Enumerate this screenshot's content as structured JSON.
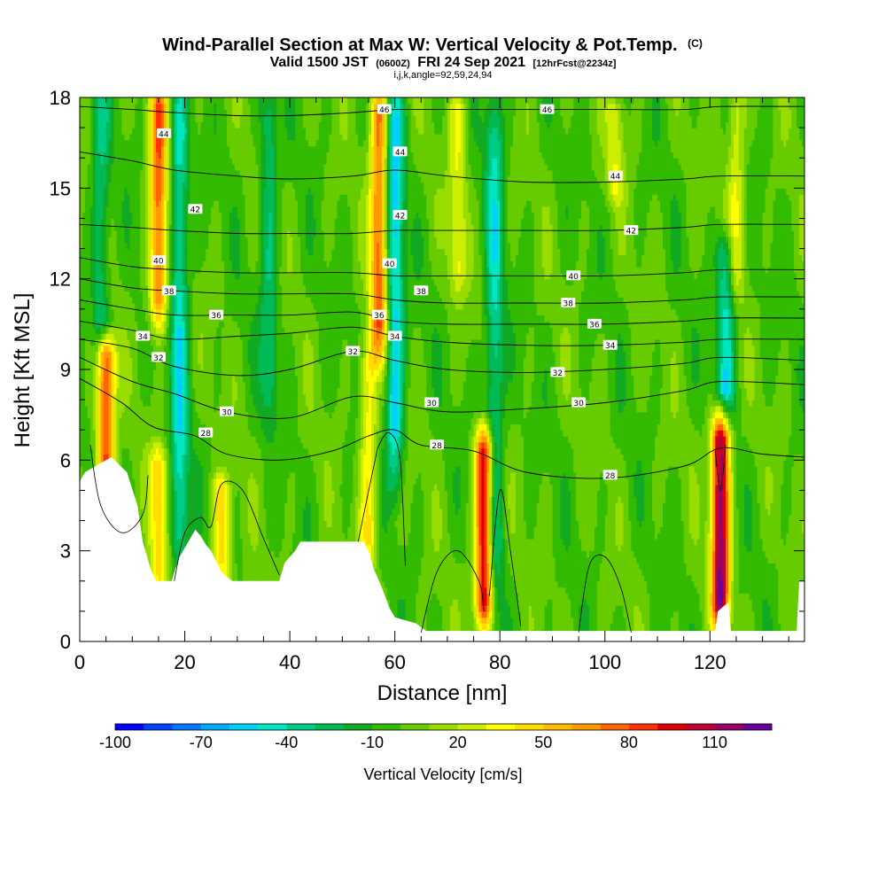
{
  "figure": {
    "title_main": "Wind-Parallel Section at Max W: Vertical Velocity & Pot.Temp.",
    "title_mark": "(C)",
    "subtitle_prefix": "Valid 1500 JST",
    "subtitle_z": "(0600Z)",
    "subtitle_date": "FRI 24 Sep 2021",
    "subtitle_fcst": "[12hrFcst@2234z]",
    "subtitle_ijk": "i,j,k,angle=92,59,24,94"
  },
  "chart_data": {
    "type": "heatmap",
    "xlabel": "Distance [nm]",
    "ylabel": "Height [Kft MSL]",
    "xlim": [
      0,
      138
    ],
    "ylim": [
      0,
      18
    ],
    "x_ticks": [
      0,
      20,
      40,
      60,
      80,
      100,
      120
    ],
    "y_ticks": [
      0,
      3,
      6,
      9,
      12,
      15,
      18
    ],
    "colorbar": {
      "label": "Vertical Velocity [cm/s]",
      "tick_labels": [
        "-100",
        "-70",
        "-40",
        "-10",
        "20",
        "50",
        "80",
        "110"
      ],
      "tick_values": [
        -100,
        -70,
        -40,
        -10,
        20,
        50,
        80,
        110
      ],
      "range": [
        -100,
        120
      ],
      "step": 10,
      "colors": [
        "#0000ff",
        "#0044ff",
        "#0077ff",
        "#00aaff",
        "#00d0ff",
        "#00e6c0",
        "#00cc88",
        "#00bb55",
        "#11aa22",
        "#33bb00",
        "#66cc00",
        "#99dd00",
        "#ccee00",
        "#ffff00",
        "#ffdd00",
        "#ffbb00",
        "#ff9900",
        "#ff6600",
        "#ff3300",
        "#dd0000",
        "#bb0033",
        "#990066",
        "#660099"
      ]
    },
    "background_value": 0,
    "updraft_columns": [
      {
        "x": 5,
        "y_bottom": 5.7,
        "y_top": 9.6,
        "peak": 85
      },
      {
        "x": 15,
        "y_bottom": 11.0,
        "y_top": 18.0,
        "peak": 75
      },
      {
        "x": 15,
        "y_bottom": 2.2,
        "y_top": 6.0,
        "peak": 45
      },
      {
        "x": 27,
        "y_bottom": 2.1,
        "y_top": 5.0,
        "peak": 45
      },
      {
        "x": 55,
        "y_bottom": 3.0,
        "y_top": 9.5,
        "peak": 40
      },
      {
        "x": 57,
        "y_bottom": 10.0,
        "y_top": 18.0,
        "peak": 75
      },
      {
        "x": 77,
        "y_bottom": 1.0,
        "y_top": 6.5,
        "peak": 105
      },
      {
        "x": 72,
        "y_bottom": 12.0,
        "y_top": 18.0,
        "peak": 30
      },
      {
        "x": 102,
        "y_bottom": 15.0,
        "y_top": 17.5,
        "peak": 25
      },
      {
        "x": 122,
        "y_bottom": 1.0,
        "y_top": 7.0,
        "peak": 118
      },
      {
        "x": 125,
        "y_bottom": 12.0,
        "y_top": 18.0,
        "peak": 30
      }
    ],
    "downdraft_columns": [
      {
        "x": 19,
        "y_bottom": 2.5,
        "y_top": 18.0,
        "peak": -45
      },
      {
        "x": 60,
        "y_bottom": 6.0,
        "y_top": 18.0,
        "peak": -55
      },
      {
        "x": 79,
        "y_bottom": 2.0,
        "y_top": 18.0,
        "peak": -40
      },
      {
        "x": 123,
        "y_bottom": 8.0,
        "y_top": 13.0,
        "peak": -45
      },
      {
        "x": 36,
        "y_bottom": 8.0,
        "y_top": 18.0,
        "peak": -30
      },
      {
        "x": 4,
        "y_bottom": 10.0,
        "y_top": 18.0,
        "peak": -30
      }
    ],
    "terrain_heights": [
      {
        "x": 0,
        "h": 5.3
      },
      {
        "x": 1,
        "h": 5.6
      },
      {
        "x": 6,
        "h": 6.1
      },
      {
        "x": 9,
        "h": 5.6
      },
      {
        "x": 11,
        "h": 4.5
      },
      {
        "x": 12,
        "h": 3.3
      },
      {
        "x": 13.5,
        "h": 2.4
      },
      {
        "x": 14.5,
        "h": 2.0
      },
      {
        "x": 17.5,
        "h": 2.0
      },
      {
        "x": 18,
        "h": 2.3
      },
      {
        "x": 19,
        "h": 2.8
      },
      {
        "x": 20,
        "h": 3.1
      },
      {
        "x": 21,
        "h": 3.4
      },
      {
        "x": 22,
        "h": 3.7
      },
      {
        "x": 23,
        "h": 3.5
      },
      {
        "x": 24,
        "h": 3.2
      },
      {
        "x": 25,
        "h": 3.0
      },
      {
        "x": 27,
        "h": 2.3
      },
      {
        "x": 29,
        "h": 2.0
      },
      {
        "x": 38,
        "h": 2.0
      },
      {
        "x": 39,
        "h": 2.6
      },
      {
        "x": 41,
        "h": 3.0
      },
      {
        "x": 42,
        "h": 3.3
      },
      {
        "x": 54,
        "h": 3.3
      },
      {
        "x": 55,
        "h": 3.0
      },
      {
        "x": 56,
        "h": 2.4
      },
      {
        "x": 57.5,
        "h": 1.8
      },
      {
        "x": 59,
        "h": 1.1
      },
      {
        "x": 60,
        "h": 0.8
      },
      {
        "x": 64,
        "h": 0.6
      },
      {
        "x": 66,
        "h": 0.35
      },
      {
        "x": 70,
        "h": 0.35
      },
      {
        "x": 71,
        "h": 0.35
      },
      {
        "x": 121,
        "h": 0.35
      },
      {
        "x": 121.5,
        "h": 1.0
      },
      {
        "x": 123.5,
        "h": 1.3
      },
      {
        "x": 124,
        "h": 0.35
      },
      {
        "x": 136.5,
        "h": 0.35
      },
      {
        "x": 137,
        "h": 2.0
      },
      {
        "x": 138,
        "h": 2.0
      }
    ],
    "theta_contours": [
      {
        "level": 28,
        "label": "28",
        "points": [
          [
            0,
            8.7
          ],
          [
            8,
            7.9
          ],
          [
            14,
            7.1
          ],
          [
            22,
            6.8
          ],
          [
            28,
            6.2
          ],
          [
            38,
            6.0
          ],
          [
            48,
            6.3
          ],
          [
            55,
            6.8
          ],
          [
            60,
            7.0
          ],
          [
            65,
            6.5
          ],
          [
            75,
            6.3
          ],
          [
            85,
            5.6
          ],
          [
            100,
            5.4
          ],
          [
            115,
            5.8
          ],
          [
            122,
            6.4
          ],
          [
            130,
            6.2
          ],
          [
            138,
            6.1
          ]
        ],
        "label_at": [
          [
            24,
            6.9
          ],
          [
            68,
            6.5
          ],
          [
            101,
            5.5
          ]
        ]
      },
      {
        "level": 30,
        "label": "30",
        "points": [
          [
            0,
            9.4
          ],
          [
            10,
            8.6
          ],
          [
            18,
            8.2
          ],
          [
            28,
            7.6
          ],
          [
            40,
            7.4
          ],
          [
            52,
            8.1
          ],
          [
            60,
            7.9
          ],
          [
            70,
            7.6
          ],
          [
            85,
            7.7
          ],
          [
            100,
            7.9
          ],
          [
            115,
            8.3
          ],
          [
            122,
            8.6
          ],
          [
            138,
            8.5
          ]
        ],
        "label_at": [
          [
            28,
            7.6
          ],
          [
            67,
            7.9
          ],
          [
            95,
            7.9
          ]
        ]
      },
      {
        "level": 32,
        "label": "32",
        "points": [
          [
            0,
            10.0
          ],
          [
            10,
            9.7
          ],
          [
            18,
            9.1
          ],
          [
            30,
            8.8
          ],
          [
            40,
            9.0
          ],
          [
            52,
            9.6
          ],
          [
            60,
            9.3
          ],
          [
            70,
            9.0
          ],
          [
            85,
            8.9
          ],
          [
            100,
            9.0
          ],
          [
            115,
            9.2
          ],
          [
            122,
            9.4
          ],
          [
            138,
            9.3
          ]
        ],
        "label_at": [
          [
            15,
            9.4
          ],
          [
            52,
            9.6
          ],
          [
            91,
            8.9
          ]
        ]
      },
      {
        "level": 34,
        "label": "34",
        "points": [
          [
            0,
            10.6
          ],
          [
            10,
            10.3
          ],
          [
            18,
            10.0
          ],
          [
            30,
            10.1
          ],
          [
            40,
            10.2
          ],
          [
            52,
            10.4
          ],
          [
            60,
            10.1
          ],
          [
            70,
            9.9
          ],
          [
            85,
            9.8
          ],
          [
            100,
            9.8
          ],
          [
            115,
            9.9
          ],
          [
            122,
            10.0
          ],
          [
            138,
            10.0
          ]
        ],
        "label_at": [
          [
            12,
            10.1
          ],
          [
            60,
            10.1
          ],
          [
            101,
            9.8
          ]
        ]
      },
      {
        "level": 36,
        "label": "36",
        "points": [
          [
            0,
            11.3
          ],
          [
            10,
            11.0
          ],
          [
            18,
            10.8
          ],
          [
            30,
            10.8
          ],
          [
            40,
            10.8
          ],
          [
            52,
            10.9
          ],
          [
            60,
            10.6
          ],
          [
            70,
            10.5
          ],
          [
            85,
            10.5
          ],
          [
            100,
            10.5
          ],
          [
            115,
            10.6
          ],
          [
            122,
            10.7
          ],
          [
            138,
            10.7
          ]
        ],
        "label_at": [
          [
            26,
            10.8
          ],
          [
            57,
            10.8
          ],
          [
            98,
            10.5
          ]
        ]
      },
      {
        "level": 38,
        "label": "38",
        "points": [
          [
            0,
            12.0
          ],
          [
            10,
            11.7
          ],
          [
            18,
            11.6
          ],
          [
            30,
            11.5
          ],
          [
            40,
            11.5
          ],
          [
            52,
            11.5
          ],
          [
            60,
            11.3
          ],
          [
            70,
            11.2
          ],
          [
            85,
            11.2
          ],
          [
            100,
            11.2
          ],
          [
            115,
            11.3
          ],
          [
            122,
            11.4
          ],
          [
            138,
            11.4
          ]
        ],
        "label_at": [
          [
            17,
            11.6
          ],
          [
            65,
            11.6
          ],
          [
            93,
            11.2
          ]
        ]
      },
      {
        "level": 40,
        "label": "40",
        "points": [
          [
            0,
            12.7
          ],
          [
            10,
            12.4
          ],
          [
            18,
            12.3
          ],
          [
            30,
            12.2
          ],
          [
            40,
            12.2
          ],
          [
            52,
            12.2
          ],
          [
            60,
            12.1
          ],
          [
            70,
            12.1
          ],
          [
            85,
            12.1
          ],
          [
            100,
            12.1
          ],
          [
            115,
            12.2
          ],
          [
            122,
            12.3
          ],
          [
            138,
            12.3
          ]
        ],
        "label_at": [
          [
            15,
            12.6
          ],
          [
            59,
            12.5
          ],
          [
            94,
            12.1
          ]
        ]
      },
      {
        "level": 42,
        "label": "42",
        "points": [
          [
            0,
            13.8
          ],
          [
            10,
            13.7
          ],
          [
            18,
            13.6
          ],
          [
            30,
            13.5
          ],
          [
            40,
            13.5
          ],
          [
            52,
            13.5
          ],
          [
            60,
            13.6
          ],
          [
            70,
            13.6
          ],
          [
            85,
            13.6
          ],
          [
            100,
            13.6
          ],
          [
            115,
            13.7
          ],
          [
            122,
            13.8
          ],
          [
            138,
            13.8
          ]
        ],
        "label_at": [
          [
            22,
            14.3
          ],
          [
            61,
            14.1
          ],
          [
            105,
            13.6
          ]
        ]
      },
      {
        "level": 44,
        "label": "44",
        "points": [
          [
            0,
            16.2
          ],
          [
            10,
            15.9
          ],
          [
            18,
            15.6
          ],
          [
            30,
            15.4
          ],
          [
            40,
            15.3
          ],
          [
            52,
            15.4
          ],
          [
            60,
            15.6
          ],
          [
            70,
            15.4
          ],
          [
            85,
            15.2
          ],
          [
            100,
            15.2
          ],
          [
            115,
            15.3
          ],
          [
            122,
            15.4
          ],
          [
            138,
            15.4
          ]
        ],
        "label_at": [
          [
            16,
            16.8
          ],
          [
            61,
            16.2
          ],
          [
            102,
            15.4
          ]
        ]
      },
      {
        "level": 46,
        "label": "46",
        "points": [
          [
            0,
            17.7
          ],
          [
            10,
            17.6
          ],
          [
            18,
            17.5
          ],
          [
            30,
            17.4
          ],
          [
            40,
            17.4
          ],
          [
            52,
            17.5
          ],
          [
            60,
            17.6
          ],
          [
            70,
            17.6
          ],
          [
            85,
            17.6
          ],
          [
            100,
            17.6
          ],
          [
            115,
            17.6
          ],
          [
            122,
            17.7
          ],
          [
            138,
            17.7
          ]
        ],
        "label_at": [
          [
            58,
            17.6
          ],
          [
            89,
            17.6
          ]
        ]
      }
    ],
    "low_contours": [
      {
        "points": [
          [
            2,
            6.5
          ],
          [
            4,
            4.5
          ],
          [
            8,
            3.6
          ],
          [
            12,
            4.2
          ],
          [
            13,
            5.5
          ]
        ]
      },
      {
        "points": [
          [
            18,
            2.0
          ],
          [
            20,
            3.6
          ],
          [
            23,
            4.1
          ],
          [
            25,
            3.8
          ],
          [
            27,
            5.2
          ],
          [
            31,
            5.0
          ],
          [
            35,
            3.4
          ],
          [
            38,
            2.2
          ]
        ]
      },
      {
        "points": [
          [
            53,
            3.3
          ],
          [
            56,
            5.8
          ],
          [
            57,
            6.5
          ],
          [
            59,
            6.9
          ],
          [
            61,
            6.0
          ],
          [
            62,
            2.5
          ]
        ]
      },
      {
        "points": [
          [
            65,
            0.3
          ],
          [
            68,
            2.3
          ],
          [
            72,
            3.0
          ],
          [
            76,
            2.0
          ],
          [
            77,
            1.0
          ]
        ]
      },
      {
        "points": [
          [
            78,
            1.5
          ],
          [
            80,
            5.0
          ],
          [
            82,
            3.0
          ],
          [
            84,
            0.5
          ]
        ]
      },
      {
        "points": [
          [
            95,
            0.3
          ],
          [
            97,
            2.5
          ],
          [
            100,
            2.8
          ],
          [
            103,
            1.8
          ],
          [
            105,
            0.3
          ]
        ]
      },
      {
        "points": [
          [
            121,
            6.3
          ],
          [
            122,
            5.0
          ],
          [
            123,
            6.5
          ]
        ]
      }
    ]
  }
}
